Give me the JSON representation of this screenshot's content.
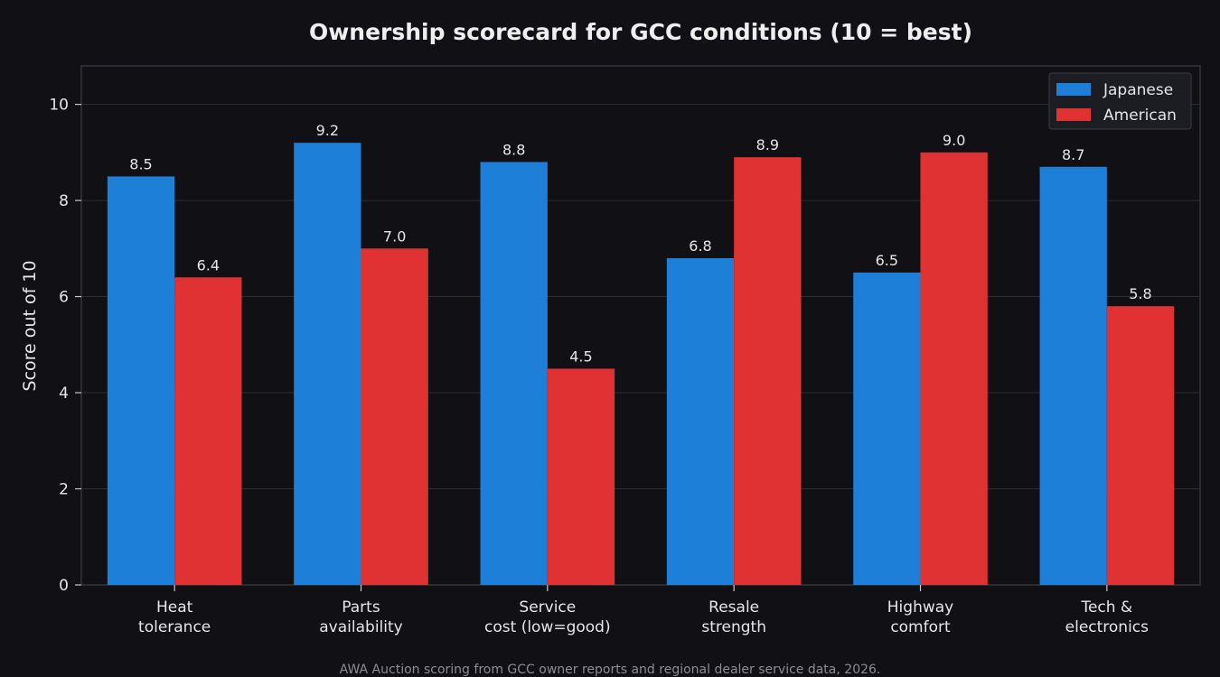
{
  "chart_data": {
    "type": "bar",
    "title": "Ownership scorecard for GCC conditions (10 = best)",
    "ylabel": "Score out of 10",
    "xlabel": "",
    "ylim": [
      0,
      10.8
    ],
    "yticks": [
      0,
      2,
      4,
      6,
      8,
      10
    ],
    "grid": true,
    "legend_position": "top-right",
    "categories": [
      [
        "Heat",
        "tolerance"
      ],
      [
        "Parts",
        "availability"
      ],
      [
        "Service",
        "cost (low=good)"
      ],
      [
        "Resale",
        "strength"
      ],
      [
        "Highway",
        "comfort"
      ],
      [
        "Tech &",
        "electronics"
      ]
    ],
    "series": [
      {
        "name": "Japanese",
        "color": "#1e7fd9",
        "values": [
          8.5,
          9.2,
          8.8,
          6.8,
          6.5,
          8.7
        ]
      },
      {
        "name": "American",
        "color": "#e03232",
        "values": [
          6.4,
          7.0,
          4.5,
          8.9,
          9.0,
          5.8
        ]
      }
    ]
  },
  "caption": "AWA Auction scoring from GCC owner reports and regional dealer service data, 2026."
}
